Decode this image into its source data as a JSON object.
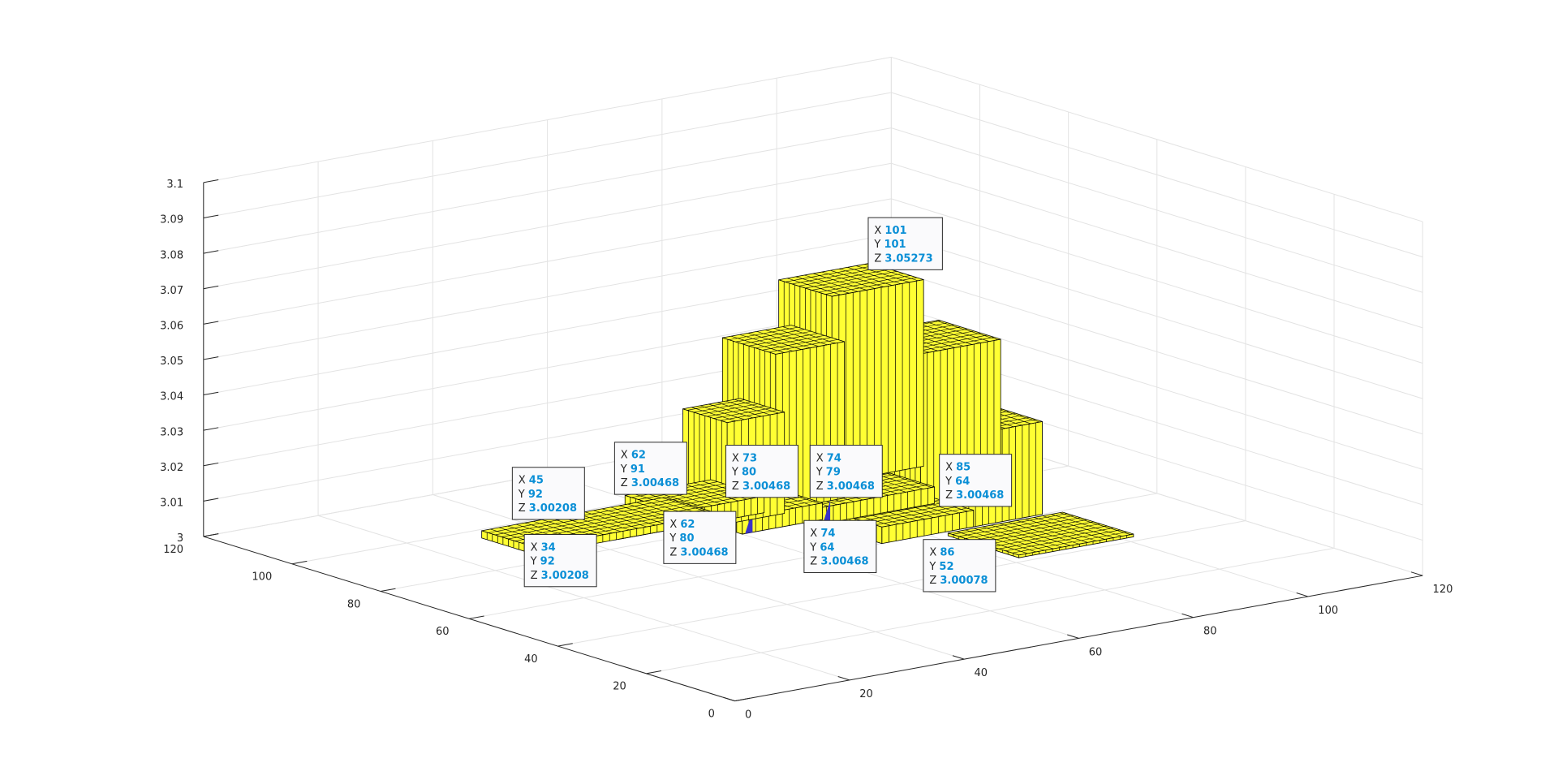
{
  "chart_data": {
    "type": "surface",
    "title": "",
    "xlabel": "",
    "ylabel": "",
    "zlabel": "",
    "xlim": [
      0,
      120
    ],
    "ylim": [
      0,
      120
    ],
    "zlim": [
      3,
      3.1
    ],
    "grid": true,
    "x_ticks": [
      "0",
      "20",
      "40",
      "60",
      "80",
      "100",
      "120"
    ],
    "y_ticks": [
      "0",
      "20",
      "40",
      "60",
      "80",
      "100",
      "120"
    ],
    "z_ticks": [
      "3",
      "3.01",
      "3.02",
      "3.03",
      "3.04",
      "3.05",
      "3.06",
      "3.07",
      "3.08",
      "3.09",
      "3.1"
    ],
    "surface_color": "#ffff33",
    "shadow_color": "#3a32c8",
    "edge_color": "#000000",
    "surface_blocks": [
      {
        "x": [
          30,
          62
        ],
        "y": [
          84,
          96
        ],
        "z": 3.00208
      },
      {
        "x": [
          44,
          62
        ],
        "y": [
          84,
          94
        ],
        "z": 3.00208
      },
      {
        "x": [
          55,
          70
        ],
        "y": [
          84,
          96
        ],
        "z": 3.00468
      },
      {
        "x": [
          60,
          74
        ],
        "y": [
          76,
          86
        ],
        "z": 3.00468
      },
      {
        "x": [
          72,
          92
        ],
        "y": [
          74,
          84
        ],
        "z": 3.00468
      },
      {
        "x": [
          72,
          88
        ],
        "y": [
          60,
          72
        ],
        "z": 3.00468
      },
      {
        "x": [
          82,
          102
        ],
        "y": [
          42,
          58
        ],
        "z": 3.00078
      },
      {
        "x": [
          62,
          72
        ],
        "y": [
          82,
          92
        ],
        "z": 3.0286
      },
      {
        "x": [
          72,
          84
        ],
        "y": [
          84,
          96
        ],
        "z": 3.0442
      },
      {
        "x": [
          86,
          100
        ],
        "y": [
          60,
          72
        ],
        "z": 3.0262
      },
      {
        "x": [
          88,
          102
        ],
        "y": [
          72,
          86
        ],
        "z": 3.0442
      },
      {
        "x": [
          88,
          104
        ],
        "y": [
          92,
          104
        ],
        "z": 3.05273
      }
    ],
    "datatips": [
      {
        "x": "45",
        "y": "92",
        "z": "3.00208"
      },
      {
        "x": "34",
        "y": "92",
        "z": "3.00208"
      },
      {
        "x": "62",
        "y": "91",
        "z": "3.00468"
      },
      {
        "x": "62",
        "y": "80",
        "z": "3.00468"
      },
      {
        "x": "73",
        "y": "80",
        "z": "3.00468"
      },
      {
        "x": "74",
        "y": "79",
        "z": "3.00468"
      },
      {
        "x": "74",
        "y": "64",
        "z": "3.00468"
      },
      {
        "x": "85",
        "y": "64",
        "z": "3.00468"
      },
      {
        "x": "86",
        "y": "52",
        "z": "3.00078"
      },
      {
        "x": "101",
        "y": "101",
        "z": "3.05273"
      }
    ],
    "datatip_labels": {
      "x": "X",
      "y": "Y",
      "z": "Z"
    }
  }
}
